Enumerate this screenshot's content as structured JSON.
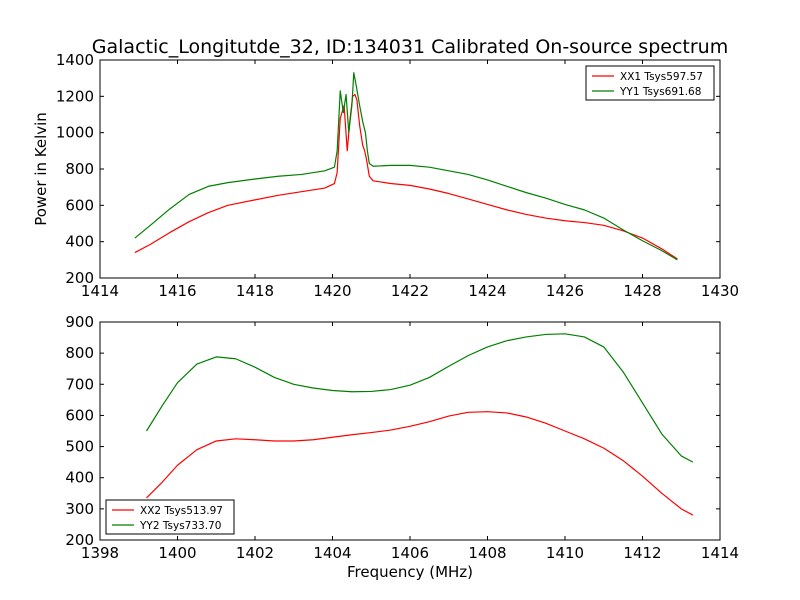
{
  "figure": {
    "title": "Galactic_Longitutde_32, ID:134031 Calibrated On-source spectrum"
  },
  "chart_data": [
    {
      "type": "line",
      "title": "Galactic_Longitutde_32, ID:134031 Calibrated On-source spectrum",
      "xlabel": "",
      "ylabel": "Power in Kelvin",
      "xlim": [
        1414,
        1430
      ],
      "ylim": [
        200,
        1400
      ],
      "xticks": [
        1414,
        1416,
        1418,
        1420,
        1422,
        1424,
        1426,
        1428,
        1430
      ],
      "yticks": [
        200,
        400,
        600,
        800,
        1000,
        1200,
        1400
      ],
      "grid": false,
      "legend_position": "top-right",
      "series": [
        {
          "name": "XX1 Tsys597.57",
          "color": "#ff0000",
          "x": [
            1414.9,
            1415.3,
            1415.8,
            1416.3,
            1416.8,
            1417.3,
            1418.0,
            1418.6,
            1419.2,
            1419.8,
            1420.05,
            1420.12,
            1420.2,
            1420.3,
            1420.38,
            1420.45,
            1420.52,
            1420.58,
            1420.63,
            1420.7,
            1420.78,
            1420.83,
            1420.88,
            1420.95,
            1421.05,
            1421.5,
            1422.0,
            1422.5,
            1423.0,
            1423.5,
            1424.0,
            1424.5,
            1425.0,
            1425.5,
            1426.0,
            1426.5,
            1427.0,
            1427.5,
            1428.0,
            1428.5,
            1428.9
          ],
          "y": [
            340,
            385,
            450,
            510,
            560,
            600,
            630,
            655,
            675,
            695,
            720,
            780,
            1080,
            1150,
            900,
            1070,
            1200,
            1210,
            1180,
            1040,
            930,
            900,
            850,
            760,
            735,
            720,
            710,
            690,
            665,
            635,
            605,
            575,
            550,
            530,
            515,
            505,
            490,
            460,
            420,
            360,
            305
          ]
        },
        {
          "name": "YY1 Tsys691.68",
          "color": "#008000",
          "x": [
            1414.9,
            1415.3,
            1415.8,
            1416.3,
            1416.8,
            1417.3,
            1418.0,
            1418.6,
            1419.2,
            1419.8,
            1420.05,
            1420.12,
            1420.2,
            1420.28,
            1420.35,
            1420.42,
            1420.5,
            1420.55,
            1420.62,
            1420.7,
            1420.78,
            1420.85,
            1420.9,
            1420.95,
            1421.05,
            1421.5,
            1422.0,
            1422.5,
            1423.0,
            1423.5,
            1424.0,
            1424.5,
            1425.0,
            1425.5,
            1426.0,
            1426.5,
            1427.0,
            1427.5,
            1428.0,
            1428.5,
            1428.9
          ],
          "y": [
            420,
            490,
            580,
            660,
            705,
            725,
            745,
            760,
            770,
            790,
            810,
            900,
            1230,
            1110,
            1210,
            1000,
            1150,
            1330,
            1250,
            1150,
            1060,
            1000,
            900,
            830,
            815,
            820,
            820,
            810,
            790,
            770,
            740,
            705,
            670,
            640,
            605,
            575,
            530,
            465,
            405,
            350,
            300
          ]
        }
      ]
    },
    {
      "type": "line",
      "title": "",
      "xlabel": "Frequency (MHz)",
      "ylabel": "",
      "xlim": [
        1398,
        1414
      ],
      "ylim": [
        200,
        900
      ],
      "xticks": [
        1398,
        1400,
        1402,
        1404,
        1406,
        1408,
        1410,
        1412,
        1414
      ],
      "yticks": [
        200,
        300,
        400,
        500,
        600,
        700,
        800,
        900
      ],
      "grid": false,
      "legend_position": "bottom-left",
      "series": [
        {
          "name": "XX2 Tsys513.97",
          "color": "#ff0000",
          "x": [
            1399.2,
            1399.6,
            1400.0,
            1400.5,
            1401.0,
            1401.5,
            1402.0,
            1402.5,
            1403.0,
            1403.5,
            1404.0,
            1404.5,
            1405.0,
            1405.5,
            1406.0,
            1406.5,
            1407.0,
            1407.5,
            1408.0,
            1408.5,
            1409.0,
            1409.5,
            1410.0,
            1410.5,
            1411.0,
            1411.5,
            1412.0,
            1412.5,
            1413.0,
            1413.3
          ],
          "y": [
            335,
            385,
            440,
            490,
            518,
            525,
            522,
            518,
            518,
            522,
            530,
            538,
            545,
            553,
            565,
            580,
            598,
            610,
            612,
            608,
            595,
            575,
            550,
            525,
            495,
            455,
            405,
            350,
            300,
            280
          ]
        },
        {
          "name": "YY2 Tsys733.70",
          "color": "#008000",
          "x": [
            1399.2,
            1399.6,
            1400.0,
            1400.5,
            1401.0,
            1401.5,
            1402.0,
            1402.5,
            1403.0,
            1403.5,
            1404.0,
            1404.5,
            1405.0,
            1405.5,
            1406.0,
            1406.5,
            1407.0,
            1407.5,
            1408.0,
            1408.5,
            1409.0,
            1409.5,
            1410.0,
            1410.5,
            1411.0,
            1411.5,
            1412.0,
            1412.5,
            1413.0,
            1413.3
          ],
          "y": [
            550,
            630,
            705,
            765,
            788,
            782,
            755,
            722,
            700,
            688,
            680,
            676,
            677,
            683,
            697,
            722,
            758,
            792,
            820,
            840,
            852,
            860,
            862,
            852,
            820,
            740,
            640,
            540,
            470,
            450
          ]
        }
      ]
    }
  ]
}
